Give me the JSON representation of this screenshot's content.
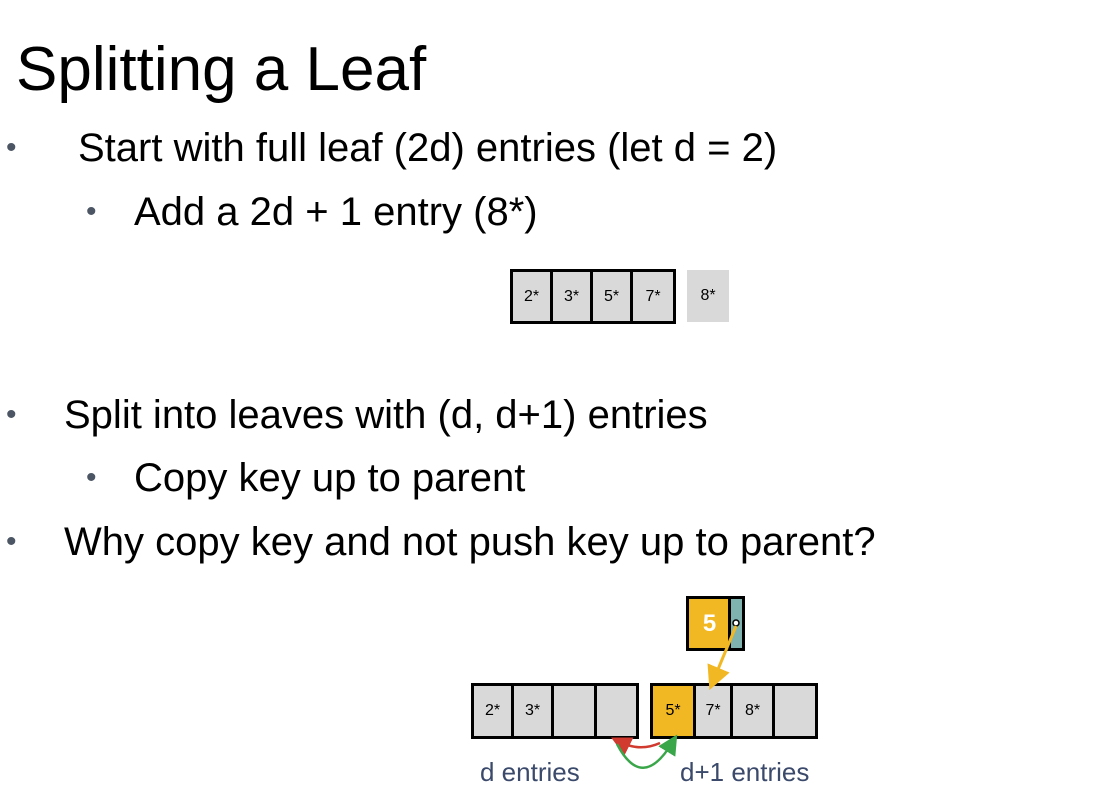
{
  "slide": {
    "title": "Splitting a Leaf",
    "bullets": [
      {
        "marker": "•",
        "text": "Start with full leaf (2d) entries (let d = 2)"
      },
      {
        "marker": "•",
        "text": "Add a 2d + 1 entry (8*)"
      },
      {
        "marker": "•",
        "text": "Split into leaves with (d, d+1) entries"
      },
      {
        "marker": "•",
        "text": "Copy key up to parent"
      },
      {
        "marker": "•",
        "text": "Why copy key and not push key up to parent?"
      }
    ]
  },
  "diagram_top": {
    "leaf_entries": [
      "2*",
      "3*",
      "5*",
      "7*"
    ],
    "new_entry": "8*"
  },
  "diagram_bottom": {
    "parent_key": "5",
    "left_leaf": [
      "2*",
      "3*",
      "",
      ""
    ],
    "right_leaf": [
      "5*",
      "7*",
      "8*",
      ""
    ],
    "left_label": "d entries",
    "right_label": "d+1 entries",
    "colors": {
      "highlight": "#f2b824",
      "pointer_slot": "#7fb3b0",
      "arrow_up": "#f2b824",
      "arrow_red": "#d03a2f",
      "arrow_green": "#3aa64a"
    }
  }
}
